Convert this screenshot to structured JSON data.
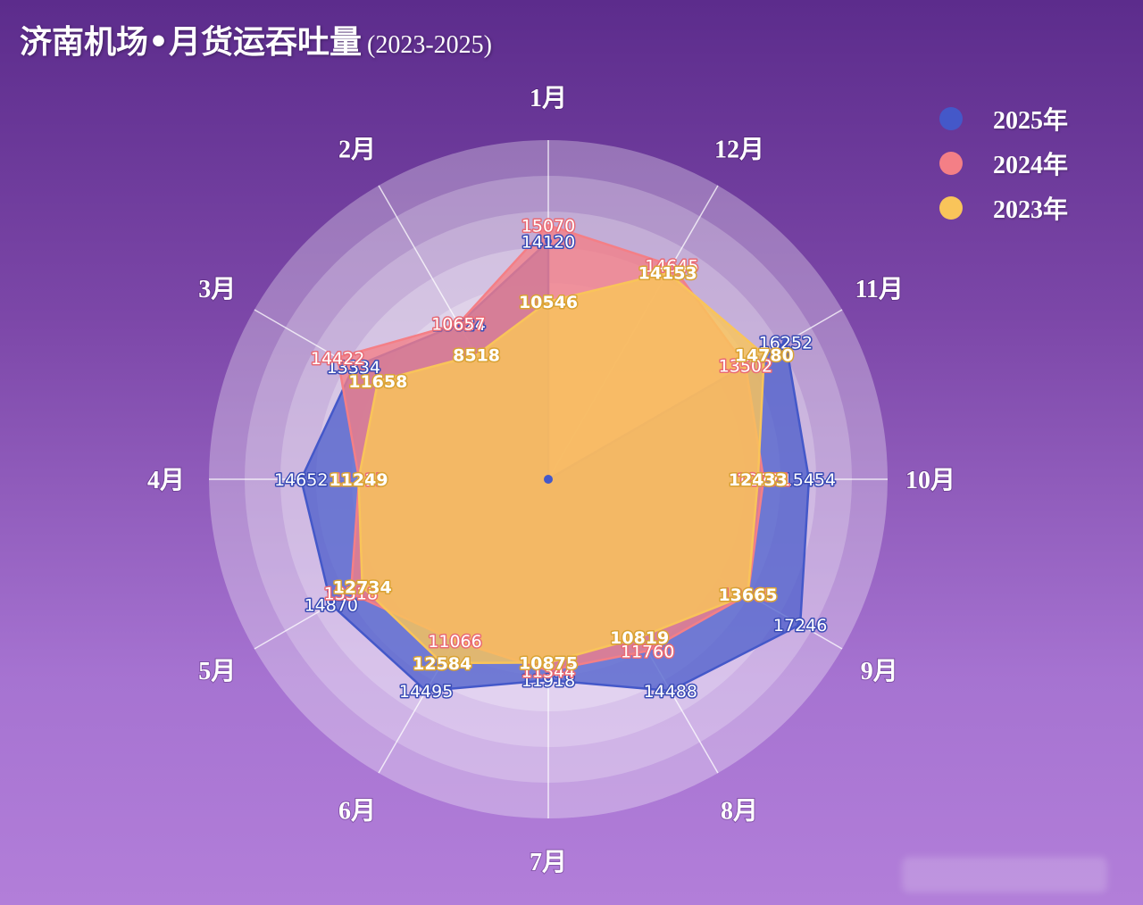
{
  "title": {
    "main": "济南机场•月货运吞吐量",
    "range": "(2023-2025)"
  },
  "colors": {
    "s2025": "#4458c9",
    "s2024": "#f47f86",
    "s2023": "#f9c45a"
  },
  "legend": [
    {
      "label": "2025年",
      "color": "#4458c9"
    },
    {
      "label": "2024年",
      "color": "#f47f86"
    },
    {
      "label": "2023年",
      "color": "#f9c45a"
    }
  ],
  "chart_data": {
    "type": "radar",
    "title": "济南机场•月货运吞吐量 (2023-2025)",
    "categories": [
      "1月",
      "2月",
      "3月",
      "4月",
      "5月",
      "6月",
      "7月",
      "8月",
      "9月",
      "10月",
      "11月",
      "12月"
    ],
    "axis_order": "clockwise starting at top: 1月, 12月, 11月 ... 2月",
    "rmax": 18000,
    "series": [
      {
        "name": "2025年",
        "values": [
          14120,
          10624,
          13334,
          14652,
          14870,
          14495,
          11918,
          14488,
          17246,
          15454,
          16252,
          0
        ]
      },
      {
        "name": "2024年",
        "values": [
          15070,
          10657,
          14422,
          11215,
          13518,
          11066,
          11344,
          11760,
          13665,
          12771,
          13502,
          14645
        ]
      },
      {
        "name": "2023年",
        "values": [
          10546,
          8518,
          11658,
          11249,
          12734,
          12584,
          10875,
          10819,
          13665,
          12433,
          14780,
          14153
        ]
      }
    ],
    "legend_position": "top-right"
  }
}
